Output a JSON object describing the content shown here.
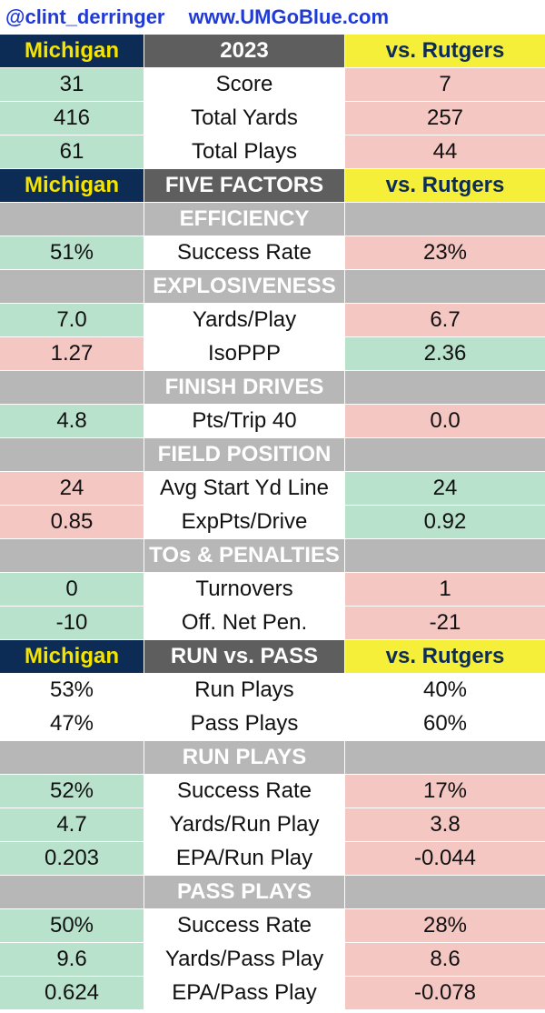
{
  "banner": {
    "handle": "@clint_derringer",
    "site": "www.UMGoBlue.com"
  },
  "rows": [
    {
      "kind": "hdr",
      "cells": [
        "Michigan",
        "2023",
        "vs. Rutgers"
      ]
    },
    {
      "kind": "data",
      "cells": [
        "31",
        "Score",
        "7"
      ],
      "left": "good",
      "right": "bad"
    },
    {
      "kind": "data",
      "cells": [
        "416",
        "Total Yards",
        "257"
      ],
      "left": "good",
      "right": "bad"
    },
    {
      "kind": "data",
      "cells": [
        "61",
        "Total Plays",
        "44"
      ],
      "left": "good",
      "right": "bad"
    },
    {
      "kind": "hdr",
      "cells": [
        "Michigan",
        "FIVE FACTORS",
        "vs. Rutgers"
      ]
    },
    {
      "kind": "sec",
      "cells": [
        "",
        "EFFICIENCY",
        ""
      ]
    },
    {
      "kind": "data",
      "cells": [
        "51%",
        "Success Rate",
        "23%"
      ],
      "left": "good",
      "right": "bad"
    },
    {
      "kind": "sec",
      "cells": [
        "",
        "EXPLOSIVENESS",
        ""
      ]
    },
    {
      "kind": "data",
      "cells": [
        "7.0",
        "Yards/Play",
        "6.7"
      ],
      "left": "good",
      "right": "bad"
    },
    {
      "kind": "data",
      "cells": [
        "1.27",
        "IsoPPP",
        "2.36"
      ],
      "left": "bad",
      "right": "good"
    },
    {
      "kind": "sec",
      "cells": [
        "",
        "FINISH DRIVES",
        ""
      ]
    },
    {
      "kind": "data",
      "cells": [
        "4.8",
        "Pts/Trip 40",
        "0.0"
      ],
      "left": "good",
      "right": "bad"
    },
    {
      "kind": "sec",
      "cells": [
        "",
        "FIELD POSITION",
        ""
      ]
    },
    {
      "kind": "data",
      "cells": [
        "24",
        "Avg Start Yd Line",
        "24"
      ],
      "left": "bad",
      "right": "good"
    },
    {
      "kind": "data",
      "cells": [
        "0.85",
        "ExpPts/Drive",
        "0.92"
      ],
      "left": "bad",
      "right": "good"
    },
    {
      "kind": "sec",
      "cells": [
        "",
        "TOs & PENALTIES",
        ""
      ]
    },
    {
      "kind": "data",
      "cells": [
        "0",
        "Turnovers",
        "1"
      ],
      "left": "good",
      "right": "bad"
    },
    {
      "kind": "data",
      "cells": [
        "-10",
        "Off. Net Pen.",
        "-21"
      ],
      "left": "good",
      "right": "bad"
    },
    {
      "kind": "hdr",
      "cells": [
        "Michigan",
        "RUN vs. PASS",
        "vs. Rutgers"
      ]
    },
    {
      "kind": "data",
      "cells": [
        "53%",
        "Run Plays",
        "40%"
      ],
      "left": "neut",
      "right": "neut"
    },
    {
      "kind": "data",
      "cells": [
        "47%",
        "Pass Plays",
        "60%"
      ],
      "left": "neut",
      "right": "neut"
    },
    {
      "kind": "sec",
      "cells": [
        "",
        "RUN PLAYS",
        ""
      ]
    },
    {
      "kind": "data",
      "cells": [
        "52%",
        "Success Rate",
        "17%"
      ],
      "left": "good",
      "right": "bad"
    },
    {
      "kind": "data",
      "cells": [
        "4.7",
        "Yards/Run Play",
        "3.8"
      ],
      "left": "good",
      "right": "bad"
    },
    {
      "kind": "data",
      "cells": [
        "0.203",
        "EPA/Run Play",
        "-0.044"
      ],
      "left": "good",
      "right": "bad"
    },
    {
      "kind": "sec",
      "cells": [
        "",
        "PASS PLAYS",
        ""
      ]
    },
    {
      "kind": "data",
      "cells": [
        "50%",
        "Success Rate",
        "28%"
      ],
      "left": "good",
      "right": "bad"
    },
    {
      "kind": "data",
      "cells": [
        "9.6",
        "Yards/Pass Play",
        "8.6"
      ],
      "left": "good",
      "right": "bad"
    },
    {
      "kind": "data",
      "cells": [
        "0.624",
        "EPA/Pass Play",
        "-0.078"
      ],
      "left": "good",
      "right": "bad"
    }
  ]
}
